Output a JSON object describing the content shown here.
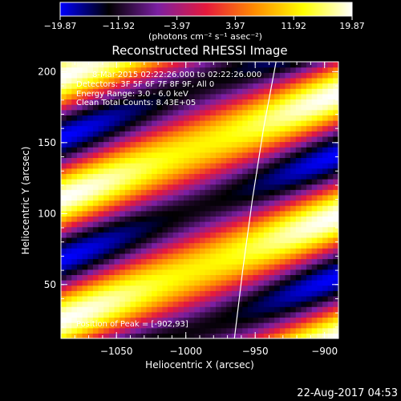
{
  "chart_data": {
    "type": "heatmap",
    "title": "Reconstructed RHESSI Image",
    "xlabel": "Heliocentric X (arcsec)",
    "ylabel": "Heliocentric Y (arcsec)",
    "xlim": [
      -1090,
      -890
    ],
    "ylim": [
      12,
      207
    ],
    "xticks": [
      -1050,
      -1000,
      -950,
      -900
    ],
    "xtick_labels": [
      "−1050",
      "−1000",
      "−950",
      "−900"
    ],
    "yticks": [
      50,
      100,
      150,
      200
    ],
    "ytick_labels": [
      "50",
      "100",
      "150",
      "200"
    ],
    "colorbar": {
      "range": [
        -19.87,
        19.87
      ],
      "ticks": [
        -19.87,
        -11.92,
        -3.97,
        3.97,
        11.92,
        19.87
      ],
      "tick_labels": [
        "−19.87",
        "−11.92",
        "−3.97",
        "3.97",
        "11.92",
        "19.87"
      ],
      "unit_label": "(photons cm⁻² s⁻¹ asec⁻²)"
    },
    "colormap_stops": [
      "#0000ff",
      "#000000",
      "#7b1fa2",
      "#e6193c",
      "#ff8c00",
      "#ffff00",
      "#ffffff"
    ],
    "stripe_pattern": {
      "slope": 0.37,
      "period_arcsec": 85.9,
      "phase_offset_arcsec": 24.7
    },
    "limb_curve": [
      {
        "x": -965,
        "y": 12
      },
      {
        "x": -959,
        "y": 60
      },
      {
        "x": -952,
        "y": 110
      },
      {
        "x": -944,
        "y": 160
      },
      {
        "x": -935,
        "y": 207
      }
    ],
    "annotations": {
      "time_range": "8-Mar-2015 02:22:26.000 to 02:22:26.000",
      "detectors": "Detectors: 3F 5F 6F 7F 8F 9F, All 0",
      "energy": "Energy Range: 3.0 - 6.0 keV",
      "clean": "Clean     Total Counts: 8.43E+05",
      "peak": "Position of Peak = [-902,93]"
    },
    "footer_date": "22-Aug-2017 04:53",
    "grid": false
  }
}
